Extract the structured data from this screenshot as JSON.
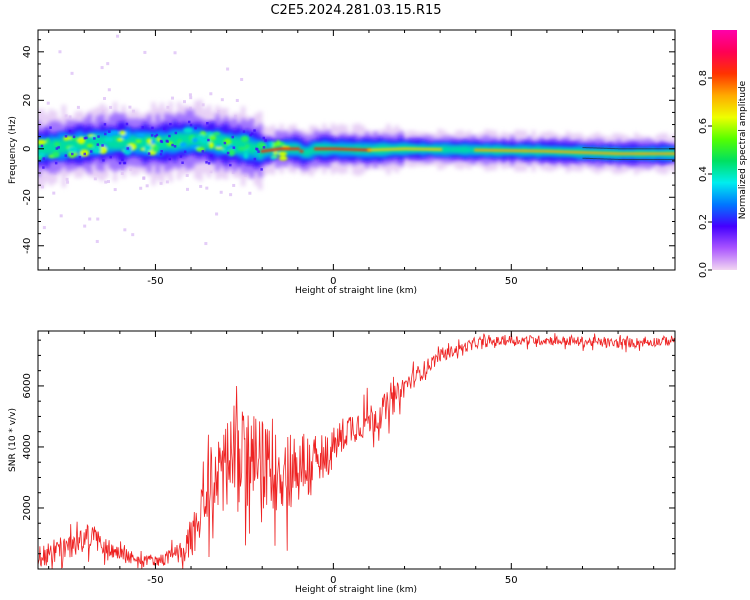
{
  "figure_title": "C2E5.2024.281.03.15.R15",
  "chart_data": [
    {
      "type": "heatmap",
      "xlabel": "Height of straight line (km)",
      "ylabel": "Frequency (Hz)",
      "xlim": [
        -83,
        96
      ],
      "ylim": [
        -50,
        49
      ],
      "xticks": [
        -50,
        0,
        50
      ],
      "yticks": [
        -40,
        -20,
        0,
        20,
        40
      ],
      "colorbar": {
        "label": "Normalized spectral amplitude",
        "range": [
          0.0,
          1.0
        ],
        "ticks": [
          0.0,
          0.2,
          0.4,
          0.6,
          0.8
        ],
        "tick_labels": [
          "0.0",
          "0.2",
          "0.4",
          "0.6",
          "0.8"
        ],
        "colors": [
          "#f2d6f2",
          "#aa55ff",
          "#4400ff",
          "#0077ff",
          "#00eeee",
          "#00e060",
          "#55ff00",
          "#eeff00",
          "#ffaa00",
          "#ff3300",
          "#ff0055",
          "#ff00aa"
        ]
      },
      "ridge": {
        "description_points_km": [
          -83,
          -70,
          -60,
          -50,
          -40,
          -30,
          -25,
          -20,
          -15,
          -10,
          -8,
          -5,
          0,
          10,
          20,
          40,
          60,
          80,
          96
        ],
        "center_hz": [
          0,
          2,
          3,
          2,
          4,
          2,
          1,
          -1,
          0,
          0,
          -2,
          0,
          0,
          -0.5,
          0,
          -0.5,
          -1,
          -2,
          -2
        ]
      }
    },
    {
      "type": "line",
      "xlabel": "Height of straight line (km)",
      "ylabel": "SNR (10 * v/v)",
      "xlim": [
        -83,
        96
      ],
      "ylim": [
        0,
        7800
      ],
      "xticks": [
        -50,
        0,
        50
      ],
      "yticks": [
        2000,
        4000,
        6000
      ],
      "series": [
        {
          "color": "#ee2222",
          "envelope_x": [
            -83,
            -75,
            -68,
            -62,
            -55,
            -48,
            -42,
            -38,
            -35,
            -32,
            -28,
            -24,
            -20,
            -16,
            -12,
            -8,
            -4,
            0,
            4,
            8,
            12,
            16,
            20,
            25,
            30,
            35,
            40,
            50,
            60,
            70,
            80,
            90,
            96
          ],
          "envelope_y": [
            400,
            700,
            1100,
            600,
            300,
            300,
            600,
            1400,
            2600,
            3300,
            3600,
            3600,
            3400,
            3200,
            3300,
            3400,
            3300,
            4000,
            4600,
            4800,
            5000,
            5400,
            6000,
            6500,
            7000,
            7200,
            7400,
            7500,
            7500,
            7450,
            7400,
            7450,
            7500
          ],
          "noise_amp": [
            500,
            500,
            550,
            350,
            200,
            250,
            500,
            900,
            1500,
            2000,
            2200,
            2100,
            1800,
            1700,
            1700,
            1600,
            1200,
            800,
            700,
            700,
            700,
            600,
            450,
            350,
            250,
            220,
            200,
            200,
            200,
            200,
            200,
            200,
            200
          ]
        }
      ]
    }
  ]
}
